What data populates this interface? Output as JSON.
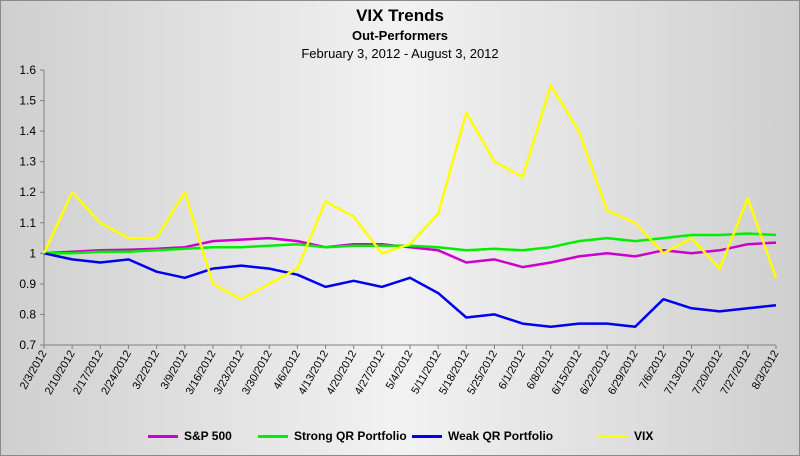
{
  "chart_data": {
    "type": "line",
    "title": "VIX Trends",
    "subtitle": "Out-Performers",
    "date_range": "February 3, 2012 - August 3, 2012",
    "ylim": [
      0.7,
      1.6
    ],
    "yticks": [
      "0.7",
      "0.8",
      "0.9",
      "1",
      "1.1",
      "1.2",
      "1.3",
      "1.4",
      "1.5",
      "1.6"
    ],
    "grid": false,
    "legend_position": "bottom",
    "x_tick_labels": [
      "2/3/2012",
      "2/10/2012",
      "2/17/2012",
      "2/24/2012",
      "3/2/2012",
      "3/9/2012",
      "3/16/2012",
      "3/23/2012",
      "3/30/2012",
      "4/6/2012",
      "4/13/2012",
      "4/20/2012",
      "4/27/2012",
      "5/4/2012",
      "5/11/2012",
      "5/18/2012",
      "5/25/2012",
      "6/1/2012",
      "6/8/2012",
      "6/15/2012",
      "6/22/2012",
      "6/29/2012",
      "7/6/2012",
      "7/13/2012",
      "7/20/2012",
      "7/27/2012",
      "8/3/2012"
    ],
    "x": [
      "2/3/2012",
      "2/10/2012",
      "2/17/2012",
      "2/24/2012",
      "3/2/2012",
      "3/9/2012",
      "3/16/2012",
      "3/23/2012",
      "3/30/2012",
      "4/6/2012",
      "4/13/2012",
      "4/20/2012",
      "4/27/2012",
      "5/4/2012",
      "5/11/2012",
      "5/18/2012",
      "5/25/2012",
      "6/1/2012",
      "6/8/2012",
      "6/15/2012",
      "6/22/2012",
      "6/29/2012",
      "7/6/2012",
      "7/13/2012",
      "7/20/2012",
      "7/27/2012",
      "8/3/2012"
    ],
    "series": [
      {
        "name": "S&P 500",
        "color": "#cc00cc",
        "values": [
          1.0,
          1.005,
          1.01,
          1.012,
          1.015,
          1.02,
          1.04,
          1.045,
          1.05,
          1.04,
          1.02,
          1.03,
          1.03,
          1.02,
          1.01,
          0.97,
          0.98,
          0.955,
          0.97,
          0.99,
          1.0,
          0.99,
          1.01,
          1.0,
          1.01,
          1.03,
          1.035
        ]
      },
      {
        "name": "Strong QR Portfolio",
        "color": "#00ee00",
        "values": [
          1.0,
          1.0,
          1.005,
          1.005,
          1.01,
          1.015,
          1.02,
          1.02,
          1.025,
          1.03,
          1.02,
          1.025,
          1.025,
          1.025,
          1.02,
          1.01,
          1.015,
          1.01,
          1.02,
          1.04,
          1.05,
          1.04,
          1.05,
          1.06,
          1.06,
          1.065,
          1.06
        ]
      },
      {
        "name": "Weak QR Portfolio",
        "color": "#0000ee",
        "values": [
          1.0,
          0.98,
          0.97,
          0.98,
          0.94,
          0.92,
          0.95,
          0.96,
          0.95,
          0.93,
          0.89,
          0.91,
          0.89,
          0.92,
          0.87,
          0.79,
          0.8,
          0.77,
          0.76,
          0.77,
          0.77,
          0.76,
          0.85,
          0.82,
          0.81,
          0.82,
          0.83
        ]
      },
      {
        "name": "VIX",
        "color": "#ffff00",
        "values": [
          1.0,
          1.2,
          1.1,
          1.05,
          1.05,
          1.2,
          0.9,
          0.85,
          0.9,
          0.95,
          1.17,
          1.12,
          1.0,
          1.03,
          1.13,
          1.46,
          1.3,
          1.25,
          1.55,
          1.4,
          1.14,
          1.1,
          1.0,
          1.05,
          0.95,
          1.18,
          0.92
        ]
      }
    ]
  }
}
